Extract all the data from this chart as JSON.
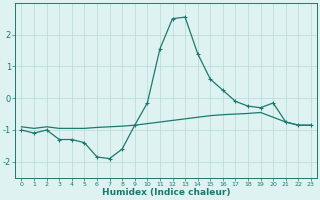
{
  "x": [
    0,
    1,
    2,
    3,
    4,
    5,
    6,
    7,
    8,
    9,
    10,
    11,
    12,
    13,
    14,
    15,
    16,
    17,
    18,
    19,
    20,
    21,
    22,
    23
  ],
  "line1": [
    -1.0,
    -1.1,
    -1.0,
    -1.3,
    -1.3,
    -1.4,
    -1.85,
    -1.9,
    -1.6,
    -0.85,
    -0.15,
    1.55,
    2.5,
    2.55,
    1.4,
    0.6,
    0.25,
    -0.1,
    -0.25,
    -0.3,
    -0.15,
    -0.75,
    -0.85,
    -0.85
  ],
  "line2": [
    -0.9,
    -0.95,
    -0.9,
    -0.95,
    -0.95,
    -0.95,
    -0.92,
    -0.9,
    -0.88,
    -0.85,
    -0.8,
    -0.75,
    -0.7,
    -0.65,
    -0.6,
    -0.55,
    -0.52,
    -0.5,
    -0.48,
    -0.45,
    -0.6,
    -0.75,
    -0.85,
    -0.85
  ],
  "bg_color": "#dff2f2",
  "line_color": "#1a7a6e",
  "grid_color": "#b8d8d8",
  "xlabel": "Humidex (Indice chaleur)",
  "xlim": [
    -0.5,
    23.5
  ],
  "ylim": [
    -2.5,
    3.0
  ],
  "yticks": [
    -2,
    -1,
    0,
    1,
    2
  ],
  "marker": "+"
}
